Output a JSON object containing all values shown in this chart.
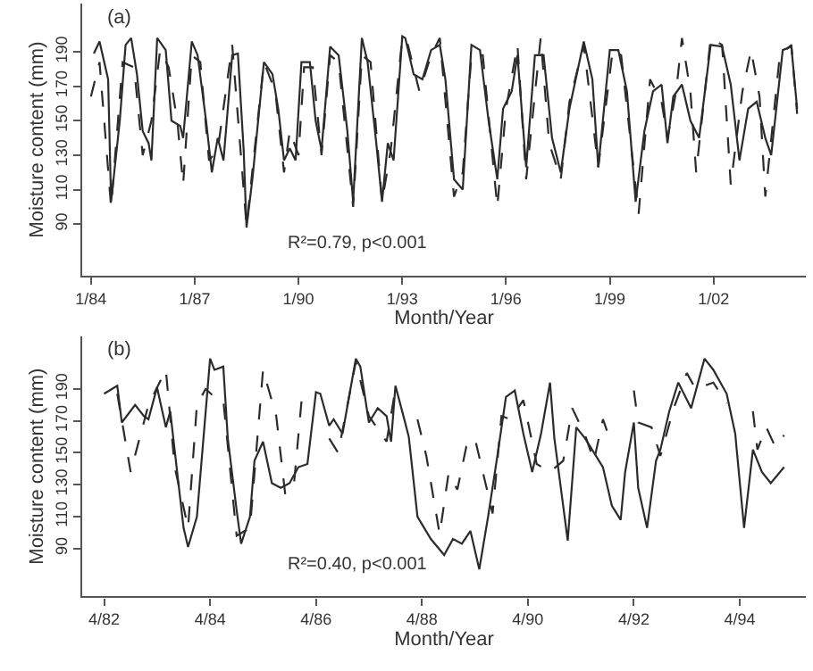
{
  "chart_data": [
    {
      "type": "line",
      "title": "(a)",
      "xlabel": "Month/Year",
      "ylabel": "Moisture content (mm)",
      "annotations": [
        "R²=0.79, p<0.001"
      ],
      "grid": false,
      "marker": "none",
      "xlim": [
        "1983-10",
        "2004-09"
      ],
      "ylim": [
        60,
        218
      ],
      "xticks": [
        {
          "value": "1984-01",
          "label": "1/84"
        },
        {
          "value": "1987-01",
          "label": "1/87"
        },
        {
          "value": "1990-01",
          "label": "1/90"
        },
        {
          "value": "1993-01",
          "label": "1/93"
        },
        {
          "value": "1996-01",
          "label": "1/96"
        },
        {
          "value": "1999-01",
          "label": "1/99"
        },
        {
          "value": "2002-01",
          "label": "1/02"
        }
      ],
      "yticks": [
        90,
        110,
        130,
        150,
        170,
        190
      ],
      "series": [
        {
          "color": "#2b2b2b",
          "line_style": "solid",
          "x": [
            "1984-02",
            "1984-04",
            "1984-07",
            "1984-08",
            "1984-11",
            "1985-01",
            "1985-03",
            "1985-05",
            "1985-07",
            "1985-09",
            "1985-10",
            "1985-12",
            "1986-03",
            "1986-05",
            "1986-08",
            "1986-09",
            "1986-12",
            "1987-02",
            "1987-05",
            "1987-07",
            "1987-09",
            "1987-11",
            "1988-02",
            "1988-04",
            "1988-06",
            "1988-07",
            "1988-09",
            "1989-01",
            "1989-04",
            "1989-06",
            "1989-08",
            "1989-10",
            "1989-12",
            "1990-02",
            "1990-05",
            "1990-07",
            "1990-09",
            "1990-12",
            "1991-03",
            "1991-06",
            "1991-08",
            "1991-11",
            "1992-01",
            "1992-04",
            "1992-06",
            "1992-08",
            "1992-10",
            "1993-01",
            "1993-02",
            "1993-05",
            "1993-08",
            "1993-11",
            "1994-02",
            "1994-04",
            "1994-07",
            "1994-10",
            "1995-01",
            "1995-04",
            "1995-07",
            "1995-10",
            "1995-12",
            "1996-03",
            "1996-05",
            "1996-08",
            "1996-11",
            "1997-02",
            "1997-05",
            "1997-08",
            "1997-11",
            "1998-04",
            "1998-07",
            "1998-09",
            "1999-01",
            "1999-04",
            "1999-07",
            "1999-10",
            "2000-01",
            "2000-04",
            "2000-07",
            "2000-09",
            "2000-11",
            "2001-02",
            "2001-05",
            "2001-08",
            "2001-12",
            "2002-04",
            "2002-07",
            "2002-10",
            "2003-01",
            "2003-04",
            "2003-07",
            "2003-09",
            "2004-01",
            "2004-04",
            "2004-06"
          ],
          "values": [
            189,
            196,
            174,
            103,
            150,
            194,
            198,
            177,
            144,
            137,
            127,
            198,
            191,
            150,
            147,
            140,
            196,
            188,
            150,
            120,
            140,
            127,
            188,
            189,
            133,
            88,
            116,
            184,
            177,
            157,
            127,
            134,
            127,
            184,
            184,
            150,
            133,
            193,
            188,
            144,
            103,
            198,
            184,
            137,
            103,
            137,
            127,
            199,
            198,
            177,
            174,
            191,
            194,
            174,
            116,
            110,
            194,
            191,
            150,
            116,
            157,
            167,
            188,
            123,
            188,
            188,
            140,
            120,
            157,
            196,
            174,
            123,
            191,
            191,
            167,
            103,
            144,
            167,
            171,
            137,
            164,
            171,
            150,
            140,
            194,
            193,
            171,
            127,
            157,
            161,
            140,
            130,
            191,
            193,
            157
          ]
        },
        {
          "color": "#2b2b2b",
          "line_style": "dashed",
          "x": [
            "1984-01",
            "1984-04",
            "1984-08",
            "1984-12",
            "1985-04",
            "1985-07",
            "1985-10",
            "1986-01",
            "1986-04",
            "1986-07",
            "1986-09",
            "1986-12",
            "1987-03",
            "1987-06",
            "1987-09",
            "1988-02",
            "1988-07",
            "1989-01",
            "1989-05",
            "1989-08",
            "1989-10",
            "1990-01",
            "1990-03",
            "1990-06",
            "1990-09",
            "1990-12",
            "1991-03",
            "1991-08",
            "1991-11",
            "1992-02",
            "1992-06",
            "1992-09",
            "1993-01",
            "1993-03",
            "1993-07",
            "1993-11",
            "1994-02",
            "1994-07",
            "1994-10",
            "1995-01",
            "1995-05",
            "1995-10",
            "1996-01",
            "1996-05",
            "1996-08",
            "1997-01",
            "1997-04",
            "1997-08",
            "1997-11",
            "1998-04",
            "1998-09",
            "1999-02",
            "1999-05",
            "1999-11",
            "2000-03",
            "2000-07",
            "2000-09",
            "2000-12",
            "2001-02",
            "2001-05",
            "2001-07",
            "2001-12",
            "2002-04",
            "2002-07",
            "2002-11",
            "2003-02",
            "2003-05",
            "2003-07",
            "2003-12",
            "2004-04",
            "2004-06"
          ],
          "values": [
            164,
            184,
            100,
            184,
            181,
            130,
            150,
            191,
            181,
            150,
            113,
            188,
            184,
            127,
            133,
            194,
            89,
            184,
            167,
            120,
            144,
            130,
            181,
            181,
            130,
            188,
            184,
            100,
            188,
            184,
            103,
            133,
            198,
            194,
            167,
            188,
            198,
            106,
            120,
            188,
            188,
            100,
            157,
            194,
            116,
            198,
            137,
            116,
            161,
            194,
            123,
            191,
            188,
            96,
            174,
            161,
            140,
            167,
            198,
            167,
            120,
            198,
            194,
            113,
            167,
            191,
            164,
            106,
            188,
            194,
            154
          ]
        }
      ]
    },
    {
      "type": "line",
      "title": "(b)",
      "xlabel": "Month/Year",
      "ylabel": "Moisture content (mm)",
      "annotations": [
        "R²=0.40, p<0.001"
      ],
      "grid": false,
      "marker": "none",
      "xlim": [
        "1981-11",
        "1995-07"
      ],
      "ylim": [
        60,
        223
      ],
      "xticks": [
        {
          "value": "1982-04",
          "label": "4/82"
        },
        {
          "value": "1984-04",
          "label": "4/84"
        },
        {
          "value": "1986-04",
          "label": "4/86"
        },
        {
          "value": "1988-04",
          "label": "4/88"
        },
        {
          "value": "1990-04",
          "label": "4/90"
        },
        {
          "value": "1992-04",
          "label": "4/92"
        },
        {
          "value": "1994-04",
          "label": "4/94"
        }
      ],
      "yticks": [
        90,
        110,
        130,
        150,
        170,
        190
      ],
      "series": [
        {
          "color": "#2b2b2b",
          "line_style": "solid",
          "x": [
            "1982-04",
            "1982-07",
            "1982-08",
            "1982-11",
            "1983-01",
            "1983-02",
            "1983-04",
            "1983-06",
            "1983-07",
            "1983-10",
            "1983-11",
            "1984-01",
            "1984-04",
            "1984-05",
            "1984-07",
            "1984-08",
            "1984-10",
            "1984-11",
            "1985-01",
            "1985-02",
            "1985-04",
            "1985-06",
            "1985-08",
            "1985-10",
            "1985-12",
            "1986-02",
            "1986-04",
            "1986-05",
            "1986-07",
            "1986-08",
            "1986-10",
            "1987-01",
            "1987-02",
            "1987-04",
            "1987-06",
            "1987-08",
            "1987-09",
            "1987-10",
            "1987-12",
            "1988-01",
            "1988-03",
            "1988-06",
            "1988-09",
            "1988-11",
            "1989-01",
            "1989-03",
            "1989-05",
            "1989-07",
            "1989-09",
            "1989-11",
            "1990-01",
            "1990-03",
            "1990-05",
            "1990-07",
            "1990-09",
            "1990-10",
            "1991-01",
            "1991-03",
            "1991-05",
            "1991-09",
            "1991-11",
            "1992-01",
            "1992-02",
            "1992-04",
            "1992-05",
            "1992-07",
            "1992-09",
            "1992-10",
            "1992-12",
            "1993-02",
            "1993-05",
            "1993-08",
            "1993-10",
            "1994-01",
            "1994-03",
            "1994-05",
            "1994-07",
            "1994-09",
            "1994-11",
            "1995-02"
          ],
          "values": [
            187,
            192,
            169,
            180,
            173,
            171,
            191,
            166,
            176,
            103,
            91,
            110,
            209,
            202,
            204,
            159,
            114,
            93,
            110,
            145,
            157,
            131,
            128,
            131,
            141,
            143,
            188,
            187,
            167,
            171,
            162,
            209,
            204,
            169,
            178,
            173,
            157,
            192,
            171,
            160,
            110,
            96,
            86,
            96,
            93,
            101,
            77,
            110,
            147,
            185,
            189,
            162,
            138,
            162,
            194,
            159,
            95,
            166,
            159,
            141,
            117,
            108,
            138,
            169,
            128,
            103,
            145,
            152,
            176,
            194,
            178,
            209,
            202,
            187,
            162,
            103,
            152,
            138,
            131,
            141
          ]
        },
        {
          "color": "#2b2b2b",
          "line_style": "dashed",
          "x": [
            "1982-07",
            "1982-10",
            "1983-02",
            "1983-06",
            "1983-08",
            "1983-11",
            "1984-01",
            "1984-03",
            "1984-05",
            "1984-07",
            "1984-10",
            "1985-01",
            "1985-04",
            "1985-07",
            "1985-09",
            "1985-11",
            "1986-01",
            "1986-02",
            "1986-07",
            "1986-09",
            "1987-01",
            "1987-04",
            "1987-08",
            "1987-10",
            "1987-12",
            "1988-03",
            "1988-05",
            "1988-08",
            "1988-10",
            "1988-12",
            "1989-02",
            "1989-04",
            "1989-08",
            "1989-10",
            "1989-12",
            "1990-03",
            "1990-06",
            "1990-09",
            "1990-12",
            "1991-02",
            "1991-05",
            "1991-07",
            "1991-09",
            "1991-11",
            "1992-01",
            "1992-04",
            "1992-05",
            "1992-08",
            "1992-10",
            "1993-01",
            "1993-04",
            "1993-06",
            "1993-10",
            "1994-01",
            "1994-03",
            "1994-07",
            "1994-08",
            "1994-10",
            "1994-12",
            "1995-02"
          ],
          "values": [
            187,
            138,
            180,
            202,
            141,
            103,
            180,
            190,
            185,
            183,
            98,
            103,
            202,
            173,
            124,
            131,
            192,
            null,
            159,
            150,
            207,
            173,
            157,
            190,
            null,
            171,
            148,
            99,
            137,
            127,
            154,
            159,
            112,
            173,
            171,
            183,
            143,
            138,
            145,
            178,
            161,
            145,
            171,
            155,
            null,
            189,
            169,
            166,
            148,
            178,
            200,
            190,
            194,
            181,
            null,
            176,
            152,
            166,
            154,
            161
          ]
        }
      ]
    }
  ]
}
